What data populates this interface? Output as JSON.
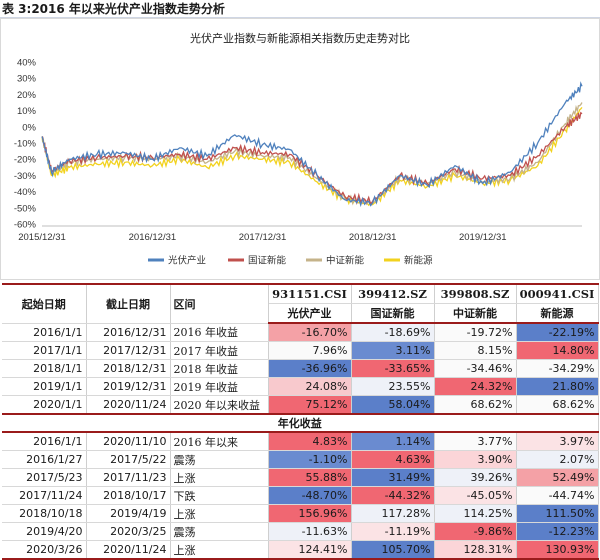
{
  "caption": "表 3:2016 年以来光伏产业指数走势分析",
  "colors": {
    "pv": "#4f81bd",
    "gz": "#c0504d",
    "zz": "#c5b38a",
    "xny": "#f2d21e"
  },
  "chart_data": {
    "type": "line",
    "title": "光伏产业指数与新能源相关指数历史走势对比",
    "x_tick_labels": [
      "2015/12/31",
      "2016/12/31",
      "2017/12/31",
      "2018/12/31",
      "2019/12/31"
    ],
    "x_range": [
      "2015/12/31",
      "2020/11/24"
    ],
    "ylim": [
      -60,
      40
    ],
    "y_tick_labels": [
      "40%",
      "30%",
      "20%",
      "10%",
      "0%",
      "-10%",
      "-20%",
      "-30%",
      "-40%",
      "-50%",
      "-60%"
    ],
    "grid": false,
    "legend_position": "bottom",
    "series": [
      {
        "name": "光伏产业",
        "x": [
          "2015/12/31",
          "2016/01/31",
          "2016/03/31",
          "2016/06/30",
          "2016/09/30",
          "2016/12/31",
          "2017/03/31",
          "2017/06/30",
          "2017/09/30",
          "2017/12/31",
          "2018/03/31",
          "2018/06/30",
          "2018/09/30",
          "2018/12/31",
          "2019/03/31",
          "2019/06/30",
          "2019/09/30",
          "2019/12/31",
          "2020/03/31",
          "2020/06/30",
          "2020/09/30",
          "2020/11/24"
        ],
        "values": [
          -6,
          -28,
          -20,
          -17,
          -16,
          -20,
          -13,
          -18,
          -5,
          -11,
          -14,
          -30,
          -45,
          -47,
          -30,
          -36,
          -24,
          -35,
          -28,
          -10,
          15,
          25
        ]
      },
      {
        "name": "国证新能",
        "x": [
          "2015/12/31",
          "2016/01/31",
          "2016/03/31",
          "2016/06/30",
          "2016/09/30",
          "2016/12/31",
          "2017/03/31",
          "2017/06/30",
          "2017/09/30",
          "2017/12/31",
          "2018/03/31",
          "2018/06/30",
          "2018/09/30",
          "2018/12/31",
          "2019/03/31",
          "2019/06/30",
          "2019/09/30",
          "2019/12/31",
          "2020/03/31",
          "2020/06/30",
          "2020/09/30",
          "2020/11/24"
        ],
        "values": [
          -6,
          -27,
          -21,
          -19,
          -18,
          -19,
          -17,
          -20,
          -13,
          -16,
          -17,
          -30,
          -43,
          -46,
          -30,
          -35,
          -26,
          -32,
          -30,
          -18,
          0,
          8
        ]
      },
      {
        "name": "中证新能",
        "x": [
          "2015/12/31",
          "2016/01/31",
          "2016/03/31",
          "2016/06/30",
          "2016/09/30",
          "2016/12/31",
          "2017/03/31",
          "2017/06/30",
          "2017/09/30",
          "2017/12/31",
          "2018/03/31",
          "2018/06/30",
          "2018/09/30",
          "2018/12/31",
          "2019/03/31",
          "2019/06/30",
          "2019/09/30",
          "2019/12/31",
          "2020/03/31",
          "2020/06/30",
          "2020/09/30",
          "2020/11/24"
        ],
        "values": [
          -6,
          -28,
          -22,
          -20,
          -19,
          -20,
          -18,
          -22,
          -15,
          -18,
          -19,
          -32,
          -44,
          -47,
          -31,
          -35,
          -28,
          -34,
          -32,
          -22,
          2,
          15
        ]
      },
      {
        "name": "新能源",
        "x": [
          "2015/12/31",
          "2016/01/31",
          "2016/03/31",
          "2016/06/30",
          "2016/09/30",
          "2016/12/31",
          "2017/03/31",
          "2017/06/30",
          "2017/09/30",
          "2017/12/31",
          "2018/03/31",
          "2018/06/30",
          "2018/09/30",
          "2018/12/31",
          "2019/03/31",
          "2019/06/30",
          "2019/09/30",
          "2019/12/31",
          "2020/03/31",
          "2020/06/30",
          "2020/09/30",
          "2020/11/24"
        ],
        "values": [
          -6,
          -30,
          -25,
          -23,
          -22,
          -24,
          -20,
          -25,
          -18,
          -20,
          -22,
          -34,
          -45,
          -48,
          -33,
          -37,
          -30,
          -35,
          -33,
          -24,
          -2,
          12
        ]
      }
    ]
  },
  "table": {
    "headers": {
      "start": "起始日期",
      "end": "截止日期",
      "period": "区间",
      "codes": [
        "931151.CSI",
        "399412.SZ",
        "399808.SZ",
        "000941.CSI"
      ],
      "names": [
        "光伏产业",
        "国证新能",
        "中证新能",
        "新能源"
      ]
    },
    "rows_top": [
      {
        "start": "2016/1/1",
        "end": "2016/12/31",
        "label": "2016 年收益",
        "vals": [
          "-16.70%",
          "-18.69%",
          "-19.72%",
          "-22.19%"
        ],
        "colors": [
          "#f4a1a6",
          "#eef1f8",
          "#fafafa",
          "#5b7fc9"
        ]
      },
      {
        "start": "2017/1/1",
        "end": "2017/12/31",
        "label": "2017 年收益",
        "vals": [
          "7.96%",
          "3.11%",
          "8.15%",
          "14.80%"
        ],
        "colors": [
          "#fafafa",
          "#6a8bd0",
          "#fafafa",
          "#f06772"
        ]
      },
      {
        "start": "2018/1/1",
        "end": "2018/12/31",
        "label": "2018 年收益",
        "vals": [
          "-36.96%",
          "-33.65%",
          "-34.46%",
          "-34.29%"
        ],
        "colors": [
          "#5b7fc9",
          "#f06772",
          "#fafafa",
          "#fafafa"
        ]
      },
      {
        "start": "2019/1/1",
        "end": "2019/12/31",
        "label": "2019 年收益",
        "vals": [
          "24.08%",
          "23.55%",
          "24.32%",
          "21.80%"
        ],
        "colors": [
          "#f8c9cd",
          "#eef1f8",
          "#f06772",
          "#5b7fc9"
        ]
      },
      {
        "start": "2020/1/1",
        "end": "2020/11/24",
        "label": "2020 年以来收益",
        "vals": [
          "75.12%",
          "58.04%",
          "68.62%",
          "68.62%"
        ],
        "colors": [
          "#f06772",
          "#5b7fc9",
          "#fafafa",
          "#fafafa"
        ]
      }
    ],
    "section_label": "年化收益",
    "rows_bottom": [
      {
        "start": "2016/1/1",
        "end": "2020/11/10",
        "label": "2016 年以来",
        "vals": [
          "4.83%",
          "1.14%",
          "3.77%",
          "3.97%"
        ],
        "colors": [
          "#f06772",
          "#6a8bd0",
          "#fafafa",
          "#fbe3e5"
        ]
      },
      {
        "start": "2016/1/27",
        "end": "2017/5/22",
        "label": "震荡",
        "vals": [
          "-1.10%",
          "4.63%",
          "3.90%",
          "2.07%"
        ],
        "colors": [
          "#6a8bd0",
          "#f06772",
          "#fbd5d8",
          "#eef1f8"
        ]
      },
      {
        "start": "2017/5/23",
        "end": "2017/11/23",
        "label": "上涨",
        "vals": [
          "55.88%",
          "31.49%",
          "39.26%",
          "52.49%"
        ],
        "colors": [
          "#f06772",
          "#5b7fc9",
          "#eef1f8",
          "#f4a1a6"
        ]
      },
      {
        "start": "2017/11/24",
        "end": "2018/10/17",
        "label": "下跌",
        "vals": [
          "-48.70%",
          "-44.32%",
          "-45.05%",
          "-44.74%"
        ],
        "colors": [
          "#5b7fc9",
          "#f06772",
          "#fbe3e5",
          "#fafafa"
        ]
      },
      {
        "start": "2018/10/18",
        "end": "2019/4/19",
        "label": "上涨",
        "vals": [
          "156.96%",
          "117.28%",
          "114.25%",
          "111.50%"
        ],
        "colors": [
          "#f06772",
          "#eef1f8",
          "#eef1f8",
          "#5b7fc9"
        ]
      },
      {
        "start": "2019/4/20",
        "end": "2020/3/25",
        "label": "震荡",
        "vals": [
          "-11.63%",
          "-11.19%",
          "-9.86%",
          "-12.23%"
        ],
        "colors": [
          "#eef1f8",
          "#fbe3e5",
          "#f06772",
          "#5b7fc9"
        ]
      },
      {
        "start": "2020/3/26",
        "end": "2020/11/24",
        "label": "上涨",
        "vals": [
          "124.41%",
          "105.70%",
          "128.31%",
          "130.93%"
        ],
        "colors": [
          "#fbe3e5",
          "#5b7fc9",
          "#fbd5d8",
          "#f06772"
        ]
      }
    ]
  }
}
